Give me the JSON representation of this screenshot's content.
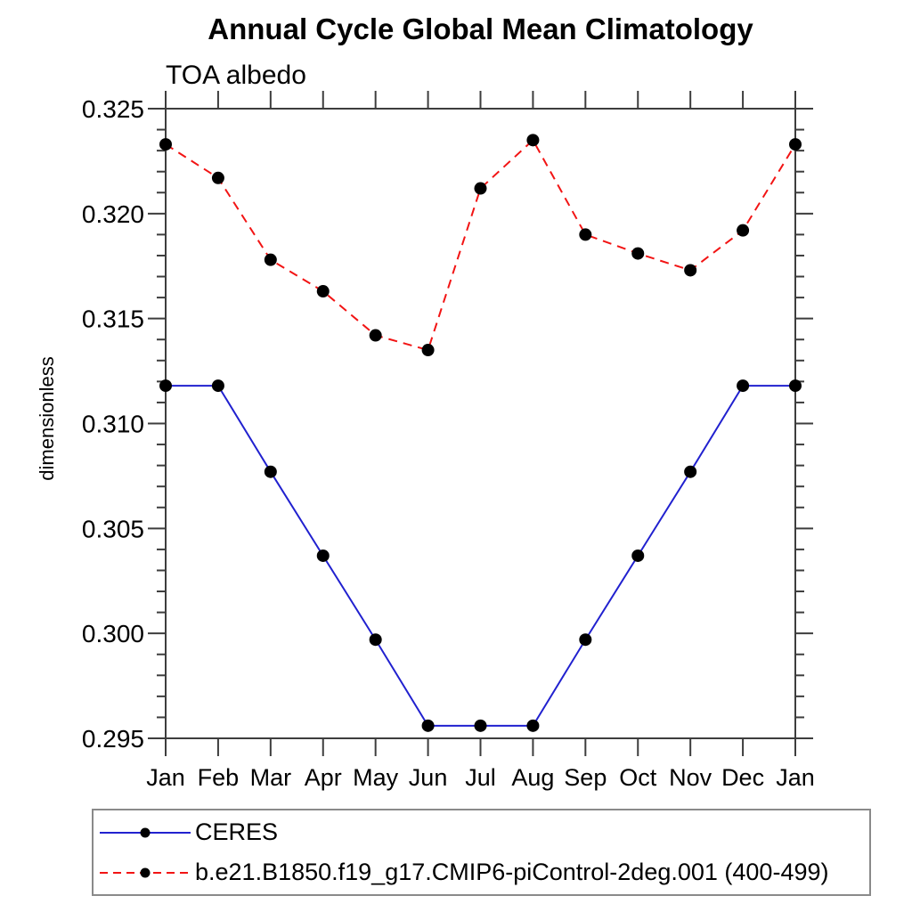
{
  "title": "Annual Cycle Global Mean Climatology",
  "subtitle": "TOA albedo",
  "y_axis": {
    "label": "dimensionless",
    "tick_labels": [
      "0.325",
      "0.320",
      "0.315",
      "0.310",
      "0.305",
      "0.300",
      "0.295"
    ]
  },
  "x_axis": {
    "tick_labels": [
      "Jan",
      "Feb",
      "Mar",
      "Apr",
      "May",
      "Jun",
      "Jul",
      "Aug",
      "Sep",
      "Oct",
      "Nov",
      "Dec",
      "Jan"
    ]
  },
  "colors": {
    "ceres_line": "#2121cf",
    "model_line": "#f21414",
    "marker": "#000000",
    "axis": "#3d3d3d",
    "legend_border": "#8a8a8a"
  },
  "chart_data": {
    "type": "line",
    "title": "Annual Cycle Global Mean Climatology",
    "subtitle": "TOA albedo",
    "xlabel": "",
    "ylabel": "dimensionless",
    "x": [
      "Jan",
      "Feb",
      "Mar",
      "Apr",
      "May",
      "Jun",
      "Jul",
      "Aug",
      "Sep",
      "Oct",
      "Nov",
      "Dec",
      "Jan"
    ],
    "ylim": [
      0.295,
      0.325
    ],
    "y_major_step": 0.005,
    "y_minor_step": 0.001,
    "grid": false,
    "legend_position": "bottom-left-box",
    "series": [
      {
        "name": "CERES",
        "color": "#2121cf",
        "line_style": "solid",
        "marker": "circle",
        "marker_color": "#000000",
        "values": [
          0.3118,
          0.3118,
          0.3077,
          0.3037,
          0.2997,
          0.2956,
          0.2956,
          0.2956,
          0.2997,
          0.3037,
          0.3077,
          0.3118,
          0.3118
        ]
      },
      {
        "name": "b.e21.B1850.f19_g17.CMIP6-piControl-2deg.001 (400-499)",
        "color": "#f21414",
        "line_style": "dashed",
        "marker": "circle",
        "marker_color": "#000000",
        "values": [
          0.3233,
          0.3217,
          0.3178,
          0.3163,
          0.3142,
          0.3135,
          0.3212,
          0.3235,
          0.319,
          0.3181,
          0.3173,
          0.3192,
          0.3233
        ]
      }
    ]
  }
}
